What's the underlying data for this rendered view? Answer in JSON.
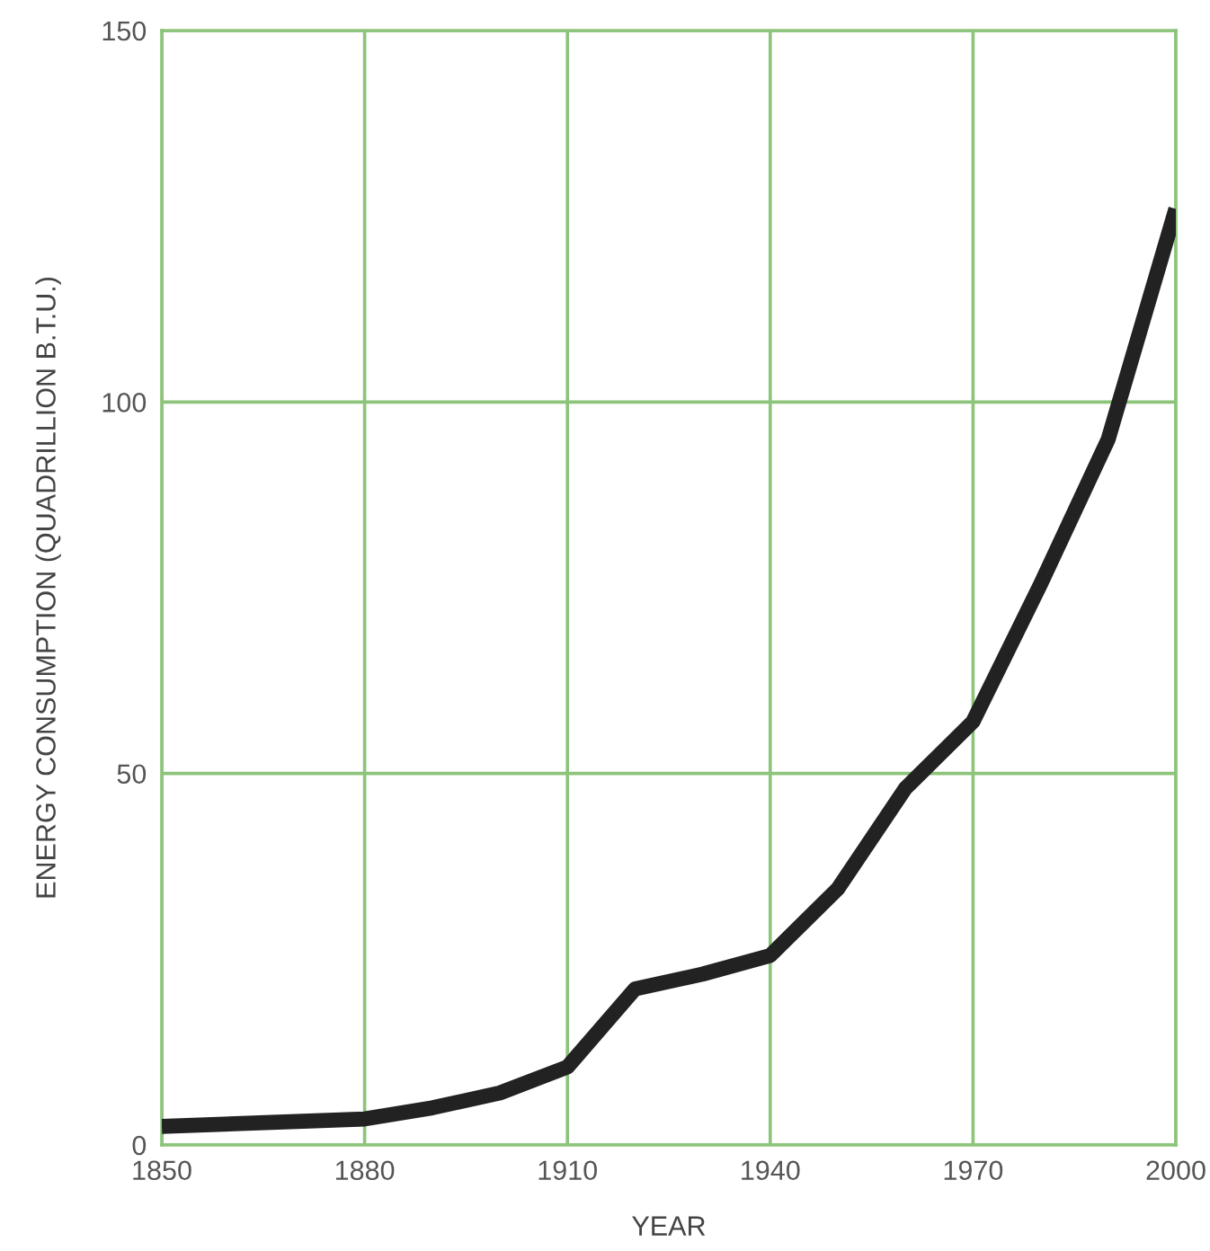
{
  "chart_data": {
    "type": "line",
    "xlabel": "YEAR",
    "ylabel": "ENERGY CONSUMPTION (QUADRILLION B.T.U.)",
    "x": [
      1850,
      1880,
      1890,
      1900,
      1910,
      1920,
      1930,
      1940,
      1950,
      1960,
      1970,
      1980,
      1990,
      2000
    ],
    "series": [
      {
        "color": "#222222",
        "values": [
          2.5,
          3.5,
          5,
          7,
          10.5,
          21,
          23,
          25.5,
          34.5,
          48,
          57,
          75.5,
          95,
          126
        ]
      }
    ],
    "xlim": [
      1850,
      2000
    ],
    "xticks": [
      1850,
      1880,
      1910,
      1940,
      1970,
      2000
    ],
    "ylim": [
      0,
      150
    ],
    "yticks": [
      0,
      50,
      100,
      150
    ],
    "grid": true,
    "legend": false,
    "marker": "none",
    "line_style": "solid"
  }
}
